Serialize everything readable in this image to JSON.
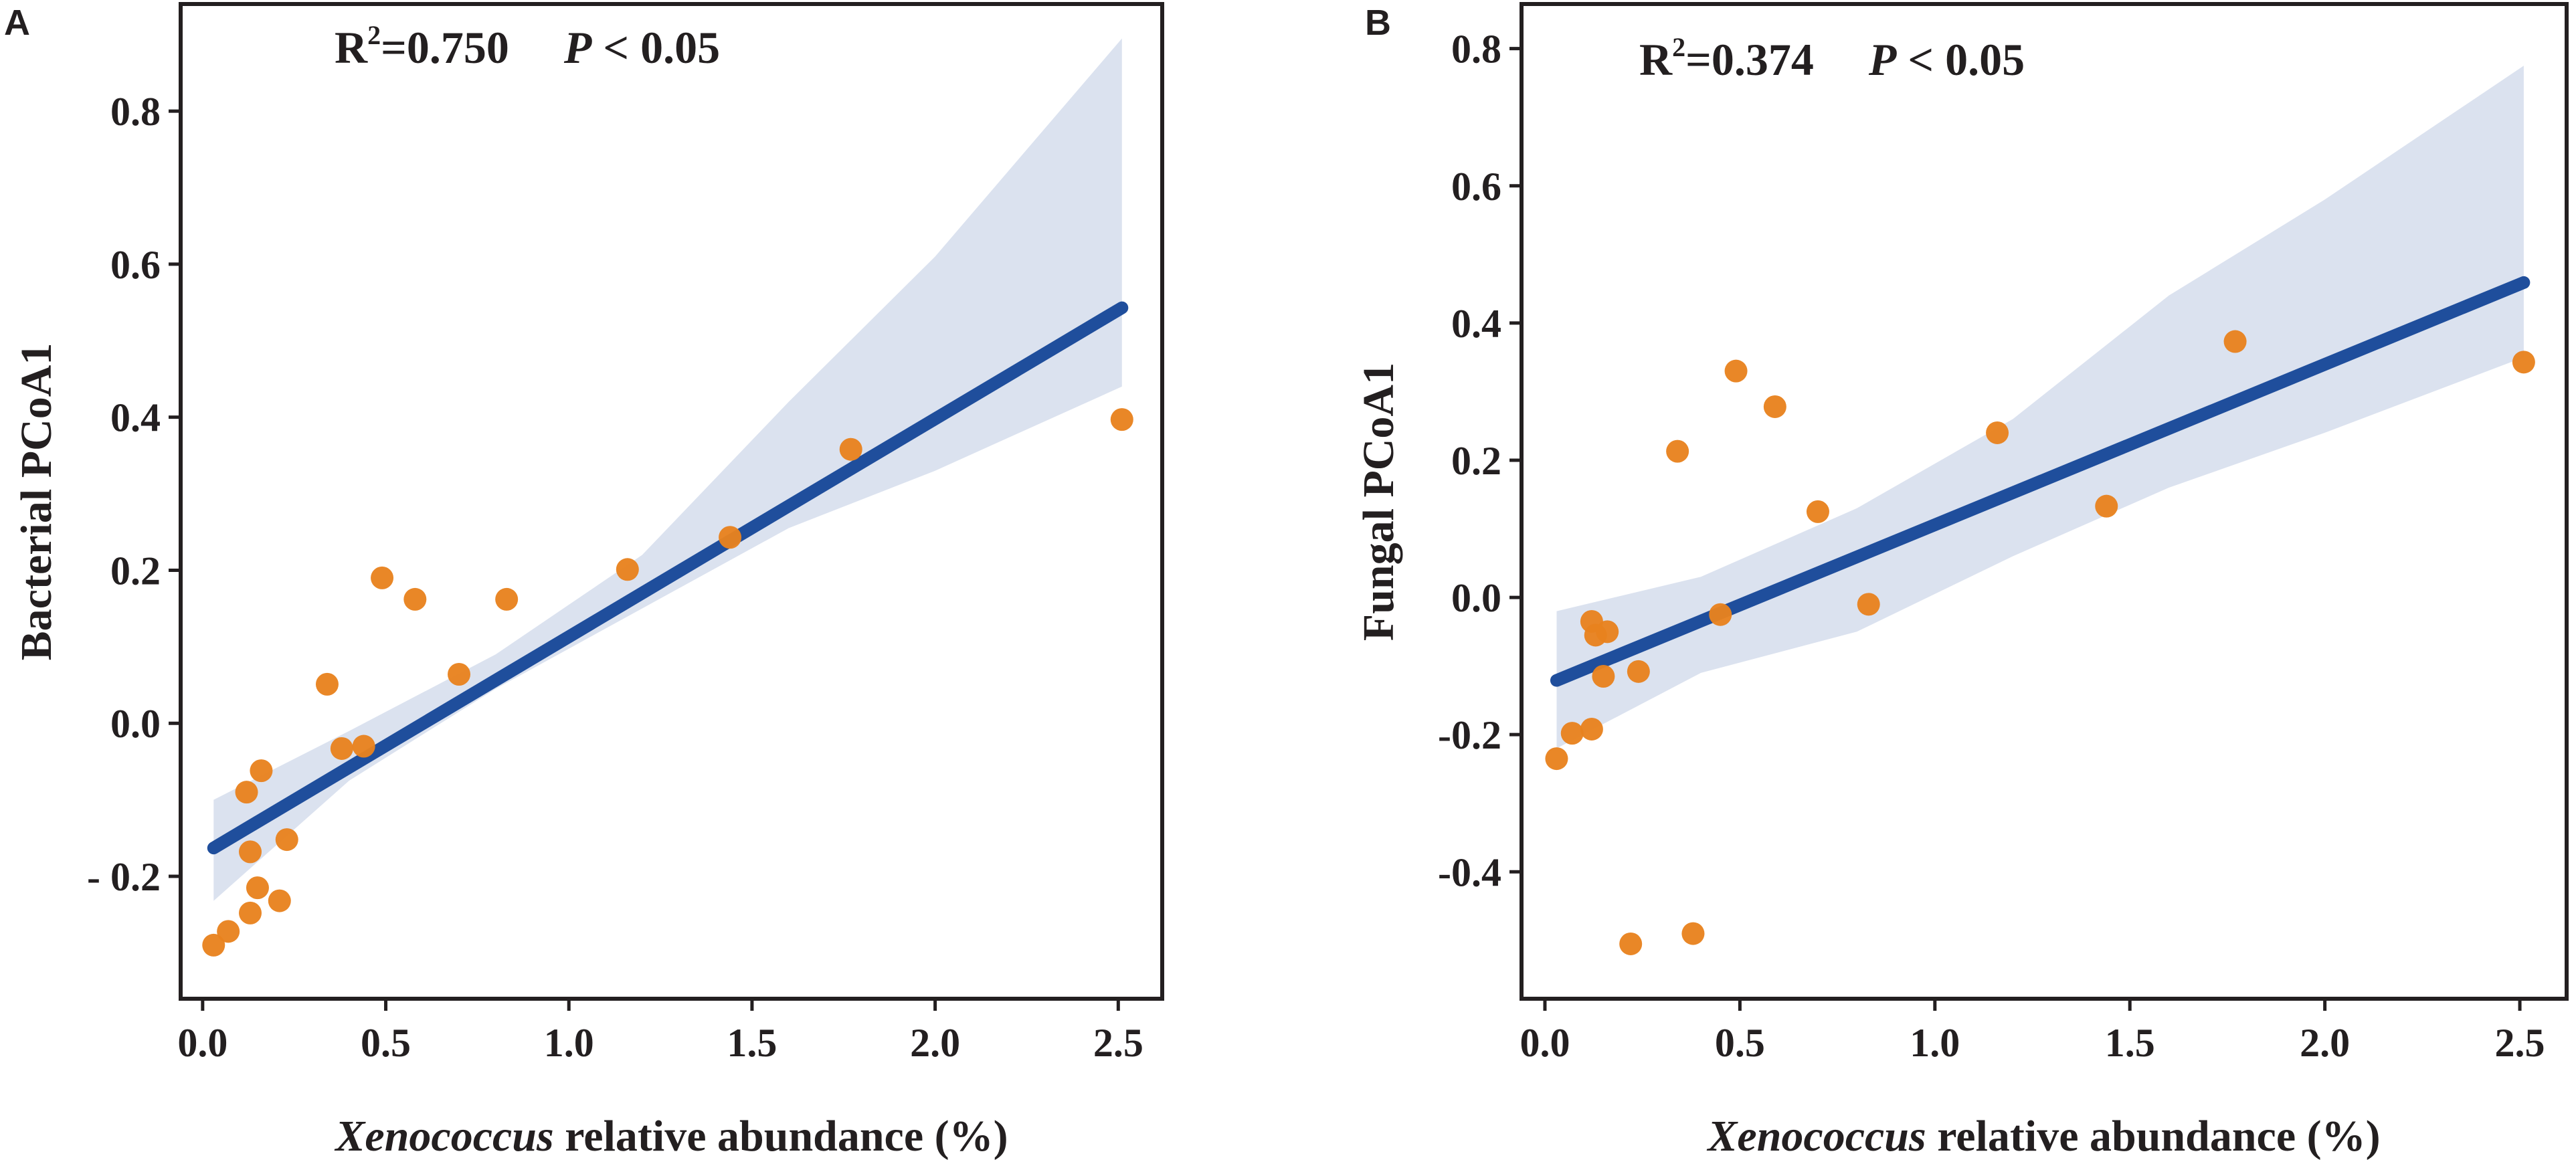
{
  "colors": {
    "fit_line": "#1f4e9c",
    "ci_band": "#dbe2ef",
    "points": "#e8821e",
    "axis": "#231f20"
  },
  "chart_data": [
    {
      "panel": "A",
      "type": "scatter",
      "stat_r2": "R",
      "stat_r2_sup": "2",
      "stat_r2_value": "=0.750",
      "stat_p_italic": "P",
      "stat_p_rest": " < 0.05",
      "xlabel_italic": "Xenococcus",
      "xlabel_rest": " relative abundance (%)",
      "ylabel": "Bacterial PCoA1",
      "xlim": [
        -0.06,
        2.62
      ],
      "ylim": [
        -0.36,
        0.94
      ],
      "xticks": [
        0.0,
        0.5,
        1.0,
        1.5,
        2.0,
        2.5
      ],
      "xtick_labels": [
        "0.0",
        "0.5",
        "1.0",
        "1.5",
        "2.0",
        "2.5"
      ],
      "yticks": [
        -0.2,
        0.0,
        0.2,
        0.4,
        0.6,
        0.8
      ],
      "ytick_labels": [
        "- 0.2",
        "0.0",
        "0.2",
        "0.4",
        "0.6",
        "0.8"
      ],
      "fit": {
        "x": [
          0.03,
          2.51
        ],
        "y": [
          -0.163,
          0.543
        ]
      },
      "ci_upper": [
        [
          0.03,
          -0.1
        ],
        [
          0.4,
          -0.01
        ],
        [
          0.8,
          0.09
        ],
        [
          1.2,
          0.22
        ],
        [
          1.6,
          0.42
        ],
        [
          2.0,
          0.61
        ],
        [
          2.51,
          0.895
        ]
      ],
      "ci_lower": [
        [
          2.51,
          0.44
        ],
        [
          2.0,
          0.33
        ],
        [
          1.6,
          0.255
        ],
        [
          1.2,
          0.15
        ],
        [
          0.8,
          0.045
        ],
        [
          0.4,
          -0.075
        ],
        [
          0.03,
          -0.232
        ]
      ],
      "points": [
        {
          "x": 0.03,
          "y": -0.29
        },
        {
          "x": 0.07,
          "y": -0.272
        },
        {
          "x": 0.12,
          "y": -0.09
        },
        {
          "x": 0.13,
          "y": -0.168
        },
        {
          "x": 0.13,
          "y": -0.248
        },
        {
          "x": 0.16,
          "y": -0.062
        },
        {
          "x": 0.15,
          "y": -0.215
        },
        {
          "x": 0.21,
          "y": -0.232
        },
        {
          "x": 0.23,
          "y": -0.152
        },
        {
          "x": 0.34,
          "y": 0.051
        },
        {
          "x": 0.38,
          "y": -0.033
        },
        {
          "x": 0.44,
          "y": -0.03
        },
        {
          "x": 0.49,
          "y": 0.19
        },
        {
          "x": 0.58,
          "y": 0.162
        },
        {
          "x": 0.7,
          "y": 0.064
        },
        {
          "x": 0.83,
          "y": 0.162
        },
        {
          "x": 1.16,
          "y": 0.201
        },
        {
          "x": 1.44,
          "y": 0.243
        },
        {
          "x": 1.77,
          "y": 0.358
        },
        {
          "x": 2.51,
          "y": 0.397
        }
      ]
    },
    {
      "panel": "B",
      "type": "scatter",
      "stat_r2": "R",
      "stat_r2_sup": "2",
      "stat_r2_value": "=0.374",
      "stat_p_italic": "P",
      "stat_p_rest": " < 0.05",
      "xlabel_italic": "Xenococcus",
      "xlabel_rest": " relative abundance (%)",
      "ylabel": "Fungal PCoA1",
      "xlim": [
        -0.06,
        2.62
      ],
      "ylim": [
        -0.585,
        0.865
      ],
      "xticks": [
        0.0,
        0.5,
        1.0,
        1.5,
        2.0,
        2.5
      ],
      "xtick_labels": [
        "0.0",
        "0.5",
        "1.0",
        "1.5",
        "2.0",
        "2.5"
      ],
      "yticks": [
        -0.4,
        -0.2,
        0.0,
        0.2,
        0.4,
        0.6,
        0.8
      ],
      "ytick_labels": [
        "-0.4",
        "-0.2",
        "0.0",
        "0.2",
        "0.4",
        "0.6",
        "0.8"
      ],
      "fit": {
        "x": [
          0.03,
          2.51
        ],
        "y": [
          -0.121,
          0.459
        ]
      },
      "ci_upper": [
        [
          0.03,
          -0.02
        ],
        [
          0.4,
          0.03
        ],
        [
          0.8,
          0.13
        ],
        [
          1.2,
          0.26
        ],
        [
          1.6,
          0.44
        ],
        [
          2.0,
          0.58
        ],
        [
          2.51,
          0.775
        ]
      ],
      "ci_lower": [
        [
          2.51,
          0.35
        ],
        [
          2.0,
          0.24
        ],
        [
          1.6,
          0.16
        ],
        [
          1.2,
          0.06
        ],
        [
          0.8,
          -0.05
        ],
        [
          0.4,
          -0.11
        ],
        [
          0.03,
          -0.22
        ]
      ],
      "points": [
        {
          "x": 0.03,
          "y": -0.235
        },
        {
          "x": 0.07,
          "y": -0.198
        },
        {
          "x": 0.12,
          "y": -0.035
        },
        {
          "x": 0.12,
          "y": -0.192
        },
        {
          "x": 0.13,
          "y": -0.055
        },
        {
          "x": 0.15,
          "y": -0.115
        },
        {
          "x": 0.16,
          "y": -0.05
        },
        {
          "x": 0.22,
          "y": -0.505
        },
        {
          "x": 0.24,
          "y": -0.108
        },
        {
          "x": 0.34,
          "y": 0.213
        },
        {
          "x": 0.38,
          "y": -0.49
        },
        {
          "x": 0.45,
          "y": -0.025
        },
        {
          "x": 0.49,
          "y": 0.33
        },
        {
          "x": 0.59,
          "y": 0.278
        },
        {
          "x": 0.7,
          "y": 0.125
        },
        {
          "x": 0.83,
          "y": -0.01
        },
        {
          "x": 1.16,
          "y": 0.24
        },
        {
          "x": 1.44,
          "y": 0.133
        },
        {
          "x": 1.77,
          "y": 0.373
        },
        {
          "x": 2.51,
          "y": 0.343
        }
      ]
    }
  ]
}
